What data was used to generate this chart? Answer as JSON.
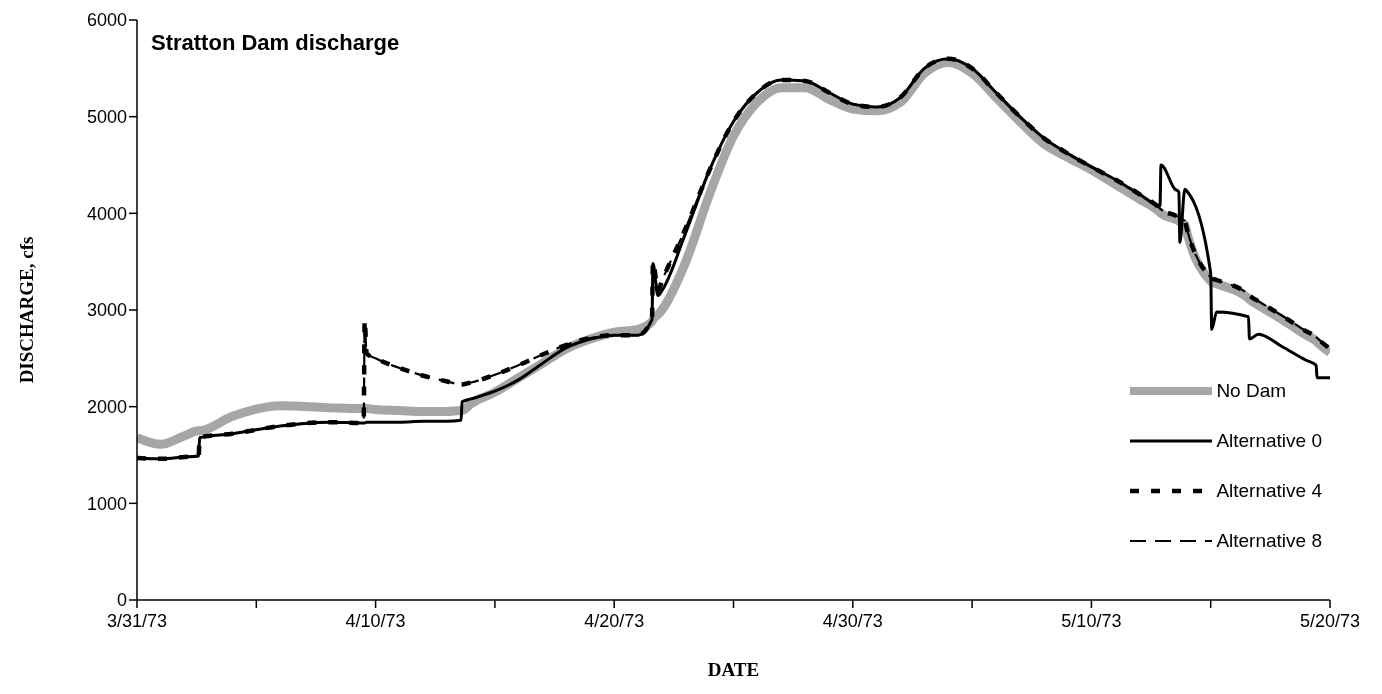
{
  "chart_data": {
    "type": "line",
    "title": "Stratton Dam discharge",
    "xlabel": "DATE",
    "ylabel": "DISCHARGE, cfs",
    "x": [
      "1973-03-31",
      "1973-04-01",
      "1973-04-02",
      "1973-04-02T14:00",
      "1973-04-02T15:00",
      "1973-04-04",
      "1973-04-06",
      "1973-04-08",
      "1973-04-09T12:00",
      "1973-04-09T13:00",
      "1973-04-09T15:00",
      "1973-04-10",
      "1973-04-11",
      "1973-04-12",
      "1973-04-13",
      "1973-04-13T14:00",
      "1973-04-13T15:00",
      "1973-04-14",
      "1973-04-15",
      "1973-04-16",
      "1973-04-17",
      "1973-04-18",
      "1973-04-19",
      "1973-04-20",
      "1973-04-21",
      "1973-04-21T14:00",
      "1973-04-21T15:00",
      "1973-04-21T20:00",
      "1973-04-22",
      "1973-04-23",
      "1973-04-24",
      "1973-04-25",
      "1973-04-26",
      "1973-04-27",
      "1973-04-28",
      "1973-04-29",
      "1973-04-30",
      "1973-05-01",
      "1973-05-02",
      "1973-05-03",
      "1973-05-04",
      "1973-05-05",
      "1973-05-06",
      "1973-05-07",
      "1973-05-08",
      "1973-05-09",
      "1973-05-10",
      "1973-05-11",
      "1973-05-12",
      "1973-05-12T21:00",
      "1973-05-12T22:00",
      "1973-05-13T12:00",
      "1973-05-13T16:00",
      "1973-05-13T17:00",
      "1973-05-13T22:00",
      "1973-05-14",
      "1973-05-15",
      "1973-05-15T01:00",
      "1973-05-15T06:00",
      "1973-05-16T14:00",
      "1973-05-16T15:00",
      "1973-05-17",
      "1973-05-18",
      "1973-05-19",
      "1973-05-19T10:00",
      "1973-05-19T11:00",
      "1973-05-20"
    ],
    "series": [
      {
        "name": "No Dam",
        "color": "#a6a6a6",
        "line_style": "solid",
        "values": [
          1680,
          1610,
          1700,
          1750,
          1750,
          1900,
          2010,
          1990,
          1980,
          1980,
          1980,
          1970,
          1960,
          1950,
          1950,
          1960,
          1960,
          2030,
          2150,
          2300,
          2450,
          2600,
          2700,
          2770,
          2800,
          2880,
          2900,
          2950,
          3000,
          3500,
          4200,
          4800,
          5150,
          5300,
          5300,
          5180,
          5080,
          5060,
          5150,
          5450,
          5560,
          5450,
          5200,
          4950,
          4720,
          4580,
          4450,
          4300,
          4150,
          4010,
          4000,
          3940,
          3920,
          3910,
          3880,
          3800,
          3300,
          3290,
          3270,
          3120,
          3110,
          3050,
          2900,
          2740,
          2680,
          2670,
          2560
        ]
      },
      {
        "name": "Alternative 0",
        "color": "#000000",
        "line_style": "solid",
        "values": [
          1470,
          1460,
          1480,
          1490,
          1680,
          1720,
          1800,
          1840,
          1830,
          1830,
          1840,
          1840,
          1840,
          1850,
          1850,
          1860,
          2050,
          2080,
          2160,
          2280,
          2450,
          2610,
          2700,
          2740,
          2740,
          2900,
          3480,
          3150,
          3200,
          3800,
          4450,
          4950,
          5250,
          5380,
          5370,
          5250,
          5130,
          5100,
          5200,
          5500,
          5600,
          5500,
          5250,
          5000,
          4780,
          4620,
          4480,
          4350,
          4200,
          4080,
          4500,
          4250,
          4220,
          3700,
          4250,
          4230,
          3380,
          2800,
          2980,
          2930,
          2700,
          2750,
          2620,
          2480,
          2430,
          2300,
          2300
        ]
      },
      {
        "name": "Alternative 4",
        "color": "#000000",
        "line_style": "dotted",
        "values": [
          1470,
          1460,
          1480,
          1490,
          1680,
          1720,
          1800,
          1840,
          1830,
          2900,
          2550,
          2500,
          2400,
          2320,
          2260,
          2230,
          2230,
          2250,
          2330,
          2430,
          2540,
          2640,
          2710,
          2740,
          2740,
          2900,
          3500,
          3200,
          3300,
          3850,
          4450,
          4950,
          5250,
          5380,
          5370,
          5250,
          5130,
          5100,
          5200,
          5500,
          5600,
          5500,
          5250,
          5000,
          4780,
          4620,
          4480,
          4350,
          4200,
          4050,
          4040,
          3980,
          3960,
          3950,
          3920,
          3840,
          3340,
          3330,
          3310,
          3160,
          3150,
          3090,
          2940,
          2780,
          2720,
          2710,
          2600
        ]
      },
      {
        "name": "Alternative 8",
        "color": "#000000",
        "line_style": "dashed",
        "values": [
          1470,
          1460,
          1480,
          1490,
          1680,
          1720,
          1800,
          1840,
          1830,
          2850,
          2550,
          2500,
          2400,
          2320,
          2260,
          2230,
          2230,
          2250,
          2330,
          2430,
          2540,
          2640,
          2710,
          2740,
          2740,
          2900,
          3450,
          3200,
          3300,
          3850,
          4450,
          4950,
          5250,
          5380,
          5370,
          5250,
          5130,
          5100,
          5200,
          5500,
          5600,
          5500,
          5250,
          5000,
          4780,
          4620,
          4480,
          4350,
          4200,
          4050,
          4040,
          3980,
          3960,
          3950,
          3920,
          3840,
          3340,
          3330,
          3310,
          3160,
          3150,
          3090,
          2940,
          2780,
          2720,
          2710,
          2600
        ]
      }
    ],
    "xlim": [
      "1973-03-31",
      "1973-05-20"
    ],
    "xticks": [
      {
        "value": "1973-03-31",
        "label": "3/31/73"
      },
      {
        "value": "1973-04-05",
        "label": null
      },
      {
        "value": "1973-04-10",
        "label": "4/10/73"
      },
      {
        "value": "1973-04-15",
        "label": null
      },
      {
        "value": "1973-04-20",
        "label": "4/20/73"
      },
      {
        "value": "1973-04-25",
        "label": null
      },
      {
        "value": "1973-04-30",
        "label": "4/30/73"
      },
      {
        "value": "1973-05-05",
        "label": null
      },
      {
        "value": "1973-05-10",
        "label": "5/10/73"
      },
      {
        "value": "1973-05-15",
        "label": null
      },
      {
        "value": "1973-05-20",
        "label": "5/20/73"
      }
    ],
    "ylim": [
      0,
      6000
    ],
    "yticks": [
      0,
      1000,
      2000,
      3000,
      4000,
      5000,
      6000
    ],
    "grid": false,
    "legend": "bottom right"
  }
}
